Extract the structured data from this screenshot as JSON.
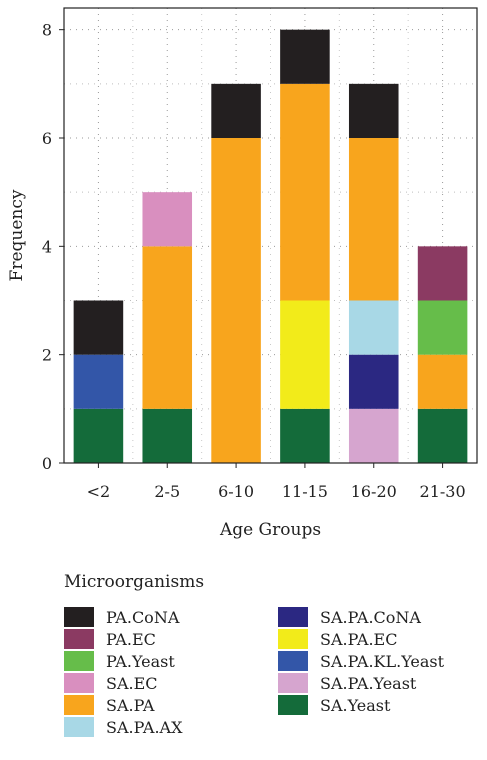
{
  "chart_data": {
    "type": "bar",
    "stacked": true,
    "title": "",
    "xlabel": "Age Groups",
    "ylabel": "Frequency",
    "ylim": [
      0,
      8.4
    ],
    "yticks": [
      0,
      2,
      4,
      6,
      8
    ],
    "grid": true,
    "categories": [
      "<2",
      "2-5",
      "6-10",
      "11-15",
      "16-20",
      "21-30"
    ],
    "legend_title": "Microorganisms",
    "legend_position": "bottom",
    "stack_order": [
      "SA.Yeast",
      "SA.PA.Yeast",
      "SA.PA.KL.Yeast",
      "SA.PA.EC",
      "SA.PA.CoNA",
      "SA.PA.AX",
      "SA.PA",
      "SA.EC",
      "PA.Yeast",
      "PA.EC",
      "PA.CoNA"
    ],
    "series": [
      {
        "name": "PA.CoNA",
        "color": "#231f20",
        "values": [
          1,
          0,
          1,
          1,
          1,
          0
        ]
      },
      {
        "name": "PA.EC",
        "color": "#8b3a62",
        "values": [
          0,
          0,
          0,
          0,
          0,
          1
        ]
      },
      {
        "name": "PA.Yeast",
        "color": "#66bd4a",
        "values": [
          0,
          0,
          0,
          0,
          0,
          1
        ]
      },
      {
        "name": "SA.EC",
        "color": "#d98fbf",
        "values": [
          0,
          1,
          0,
          0,
          0,
          0
        ]
      },
      {
        "name": "SA.PA",
        "color": "#f8a51d",
        "values": [
          0,
          3,
          6,
          4,
          3,
          1
        ]
      },
      {
        "name": "SA.PA.AX",
        "color": "#a8d8e6",
        "values": [
          0,
          0,
          0,
          0,
          1,
          0
        ]
      },
      {
        "name": "SA.PA.CoNA",
        "color": "#2b2882",
        "values": [
          0,
          0,
          0,
          0,
          1,
          0
        ]
      },
      {
        "name": "SA.PA.EC",
        "color": "#f2eb1a",
        "values": [
          0,
          0,
          0,
          2,
          0,
          0
        ]
      },
      {
        "name": "SA.PA.KL.Yeast",
        "color": "#3356a8",
        "values": [
          1,
          0,
          0,
          0,
          0,
          0
        ]
      },
      {
        "name": "SA.PA.Yeast",
        "color": "#d6a5cf",
        "values": [
          0,
          0,
          0,
          0,
          1,
          0
        ]
      },
      {
        "name": "SA.Yeast",
        "color": "#146b3a",
        "values": [
          1,
          1,
          0,
          1,
          0,
          1
        ]
      }
    ],
    "legend_columns": [
      [
        "PA.CoNA",
        "PA.EC",
        "PA.Yeast",
        "SA.EC",
        "SA.PA",
        "SA.PA.AX"
      ],
      [
        "SA.PA.CoNA",
        "SA.PA.EC",
        "SA.PA.KL.Yeast",
        "SA.PA.Yeast",
        "SA.Yeast"
      ]
    ]
  }
}
